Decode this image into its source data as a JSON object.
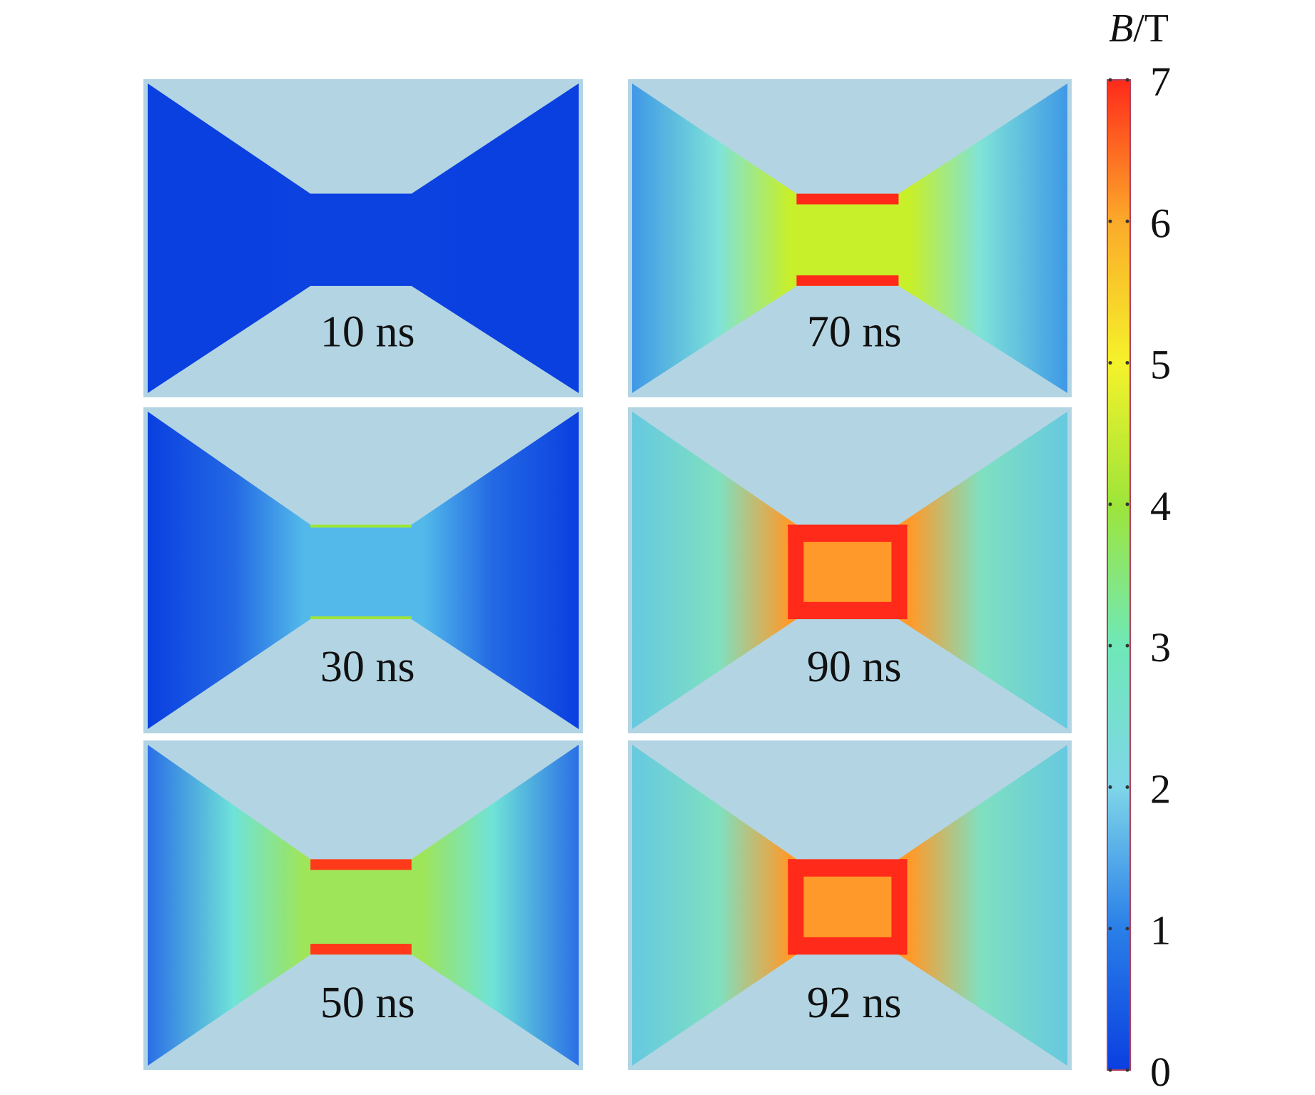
{
  "chart_data": {
    "type": "heatmap",
    "title": "",
    "colorbar": {
      "label_italic": "B",
      "label_unit": "/T",
      "range": [
        0,
        7
      ],
      "ticks": [
        "0",
        "1",
        "2",
        "3",
        "4",
        "5",
        "6",
        "7"
      ],
      "colormap": [
        "#0a3fe0",
        "#2a7fe8",
        "#7fd6e8",
        "#6fe8b8",
        "#9ee53a",
        "#f5f22a",
        "#fbaa2a",
        "#ff2a1a"
      ]
    },
    "background_color": "#b3d5e3",
    "panels": [
      {
        "label": "10 ns",
        "edge": "#0a3fe0",
        "mid": "#0a3fe0",
        "center": "#0b42e0",
        "rim": "#0a3fe0",
        "hot": 0
      },
      {
        "label": "70 ns",
        "edge": "#3f98e6",
        "mid": "#7fe3d8",
        "center": "#c7ef2a",
        "rim": "#ff2a1a",
        "hot": 0.4
      },
      {
        "label": "30 ns",
        "edge": "#0a3fe0",
        "mid": "#2369e4",
        "center": "#52b9ea",
        "rim": "#9ee53a",
        "hot": 0
      },
      {
        "label": "90 ns",
        "edge": "#66c9e0",
        "mid": "#7fe0c0",
        "center": "#ff9a2a",
        "rim": "#ff2a1a",
        "hot": 1
      },
      {
        "label": "50 ns",
        "edge": "#2a6fe6",
        "mid": "#6fe3d8",
        "center": "#9ee55a",
        "rim": "#ff3a1a",
        "hot": 0.2
      },
      {
        "label": "92 ns",
        "edge": "#66c9e0",
        "mid": "#7fe0c0",
        "center": "#ff9a2a",
        "rim": "#ff2a1a",
        "hot": 1
      }
    ]
  }
}
